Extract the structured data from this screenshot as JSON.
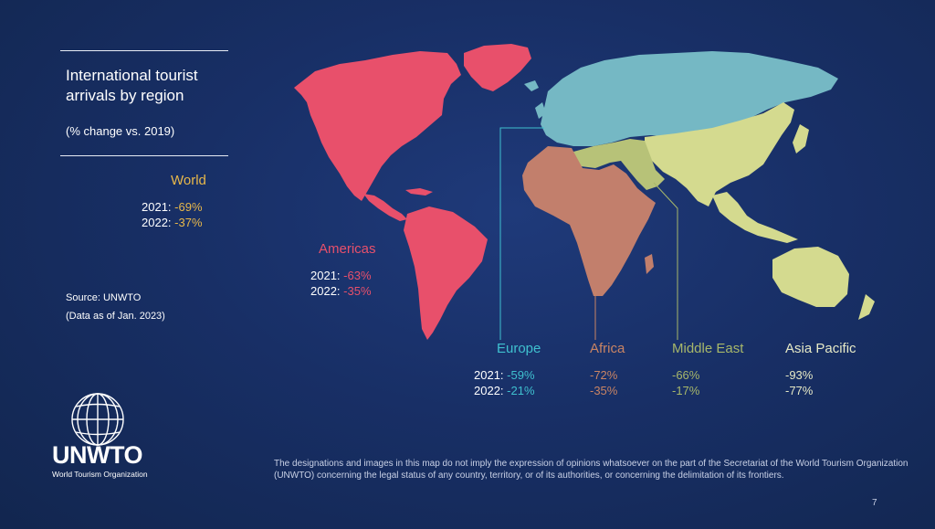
{
  "title": "International tourist arrivals by region",
  "subtitle": "(% change vs. 2019)",
  "world": {
    "name": "World",
    "y2021": "2021:",
    "v2021": "-69%",
    "y2022": "2022:",
    "v2022": "-37%"
  },
  "source_line1": "Source: UNWTO",
  "source_line2": "(Data as of Jan. 2023)",
  "regions": {
    "americas": {
      "name": "Americas",
      "y2021": "2021:",
      "v2021": "-63%",
      "y2022": "2022:",
      "v2022": "-35%",
      "color": "#e8506b"
    },
    "europe": {
      "name": "Europe",
      "y2021": "2021:",
      "v2021": "-59%",
      "y2022": "2022:",
      "v2022": "-21%",
      "color": "#3fc0cf"
    },
    "africa": {
      "name": "Africa",
      "v2021": "-72%",
      "v2022": "-35%",
      "color": "#c98464"
    },
    "middle_east": {
      "name": "Middle East",
      "v2021": "-66%",
      "v2022": "-17%",
      "color": "#a7b76a"
    },
    "asia_pacific": {
      "name": "Asia Pacific",
      "v2021": "-93%",
      "v2022": "-77%",
      "color": "#d6dc8d"
    }
  },
  "map_colors": {
    "americas": "#e8506b",
    "europe": "#75b8c4",
    "africa": "#c27f6c",
    "middle_east": "#b7c278",
    "asia_pacific": "#d4da8f",
    "world_label": "#e8b84a"
  },
  "logo": {
    "word": "UNWTO",
    "sub": "World Tourism Organization",
    "icon": "globe-icon"
  },
  "disclaimer": "The designations and images in this map do not imply the expression of opinions whatsoever on the part of the Secretariat of the World Tourism Organization (UNWTO) concerning the legal status of any country, territory, or of its authorities, or concerning the delimitation of its frontiers.",
  "page_number": "7"
}
